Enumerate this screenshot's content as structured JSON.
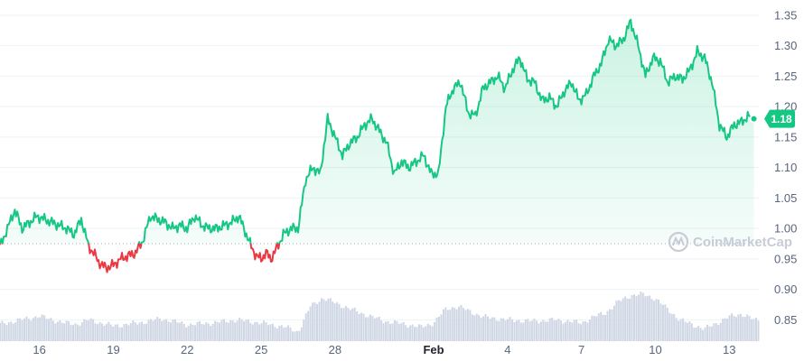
{
  "chart_data": {
    "type": "line",
    "y_ticks": [
      "1.35",
      "1.30",
      "1.25",
      "1.20",
      "1.15",
      "1.10",
      "1.05",
      "1.00",
      "0.95",
      "0.90",
      "0.85"
    ],
    "ylim": [
      0.815,
      1.375
    ],
    "x_ticks": [
      {
        "day": 1,
        "label": "16"
      },
      {
        "day": 4,
        "label": "19"
      },
      {
        "day": 7,
        "label": "22"
      },
      {
        "day": 10,
        "label": "25"
      },
      {
        "day": 13,
        "label": "28"
      },
      {
        "day": 17,
        "label": "Feb",
        "bold": true
      },
      {
        "day": 20,
        "label": "4"
      },
      {
        "day": 23,
        "label": "7"
      },
      {
        "day": 26,
        "label": "10"
      },
      {
        "day": 29,
        "label": "13"
      }
    ],
    "xlim": [
      -0.6,
      30.2
    ],
    "baseline": 0.975,
    "current_price": "1.18",
    "watermark": "CoinMarketCap",
    "colors": {
      "up": "#16c784",
      "down": "#ea3943",
      "volume": "#cfd6e4",
      "badge": "#16c784"
    },
    "price": {
      "x": [
        -0.6,
        -0.3,
        0.0,
        0.3,
        0.6,
        0.9,
        1.2,
        1.5,
        1.8,
        2.1,
        2.4,
        2.7,
        3.0,
        3.2,
        3.4,
        3.7,
        4.0,
        4.3,
        4.6,
        4.9,
        5.2,
        5.5,
        5.8,
        6.1,
        6.4,
        6.7,
        7.0,
        7.3,
        7.6,
        7.9,
        8.2,
        8.5,
        8.8,
        9.1,
        9.4,
        9.6,
        9.8,
        10.0,
        10.2,
        10.4,
        10.6,
        10.9,
        11.2,
        11.5,
        11.8,
        12.1,
        12.4,
        12.7,
        13.0,
        13.3,
        13.6,
        13.9,
        14.2,
        14.5,
        14.8,
        15.1,
        15.4,
        15.7,
        16.0,
        16.3,
        16.6,
        16.9,
        17.2,
        17.5,
        17.8,
        18.1,
        18.4,
        18.7,
        19.0,
        19.3,
        19.6,
        19.9,
        20.2,
        20.5,
        20.8,
        21.1,
        21.4,
        21.7,
        22.0,
        22.3,
        22.6,
        22.9,
        23.2,
        23.5,
        23.8,
        24.1,
        24.4,
        24.7,
        25.0,
        25.3,
        25.6,
        25.9,
        26.2,
        26.5,
        26.8,
        27.1,
        27.4,
        27.7,
        28.0,
        28.3,
        28.6,
        28.9,
        29.2,
        29.5,
        29.8,
        30.0
      ],
      "y": [
        0.97,
        1.0,
        1.03,
        1.0,
        1.01,
        1.02,
        1.015,
        1.01,
        1.005,
        1.0,
        0.99,
        1.015,
        0.97,
        0.96,
        0.945,
        0.935,
        0.94,
        0.95,
        0.955,
        0.96,
        0.98,
        1.02,
        1.015,
        1.01,
        1.0,
        1.005,
        1.0,
        1.02,
        1.005,
        1.0,
        1.0,
        1.005,
        1.01,
        1.02,
        0.99,
        0.97,
        0.955,
        0.95,
        0.96,
        0.95,
        0.965,
        0.99,
        1.0,
        1.0,
        1.08,
        1.1,
        1.09,
        1.18,
        1.15,
        1.12,
        1.14,
        1.15,
        1.17,
        1.18,
        1.16,
        1.14,
        1.09,
        1.11,
        1.1,
        1.11,
        1.12,
        1.09,
        1.09,
        1.2,
        1.23,
        1.24,
        1.19,
        1.185,
        1.23,
        1.24,
        1.25,
        1.23,
        1.26,
        1.28,
        1.245,
        1.24,
        1.21,
        1.215,
        1.2,
        1.225,
        1.24,
        1.21,
        1.22,
        1.25,
        1.27,
        1.31,
        1.3,
        1.31,
        1.34,
        1.3,
        1.25,
        1.28,
        1.275,
        1.24,
        1.25,
        1.245,
        1.26,
        1.29,
        1.28,
        1.24,
        1.17,
        1.15,
        1.17,
        1.175,
        1.185,
        1.18
      ]
    },
    "volume": {
      "x": [
        -0.6,
        0.0,
        1.0,
        2.0,
        2.5,
        3.0,
        4.0,
        5.0,
        6.0,
        7.0,
        8.0,
        9.0,
        10.0,
        11.0,
        11.5,
        12.0,
        12.5,
        13.0,
        14.0,
        15.0,
        16.0,
        16.5,
        17.0,
        17.5,
        18.0,
        19.0,
        20.0,
        21.0,
        22.0,
        23.0,
        23.5,
        24.0,
        24.5,
        25.0,
        25.5,
        26.0,
        27.0,
        28.0,
        29.0,
        29.5,
        30.0
      ],
      "y": [
        0.843,
        0.848,
        0.856,
        0.845,
        0.843,
        0.85,
        0.84,
        0.845,
        0.852,
        0.842,
        0.845,
        0.85,
        0.845,
        0.838,
        0.83,
        0.872,
        0.886,
        0.878,
        0.862,
        0.848,
        0.842,
        0.838,
        0.845,
        0.868,
        0.872,
        0.855,
        0.85,
        0.848,
        0.85,
        0.845,
        0.855,
        0.862,
        0.88,
        0.89,
        0.892,
        0.885,
        0.85,
        0.835,
        0.855,
        0.86,
        0.85
      ]
    }
  }
}
